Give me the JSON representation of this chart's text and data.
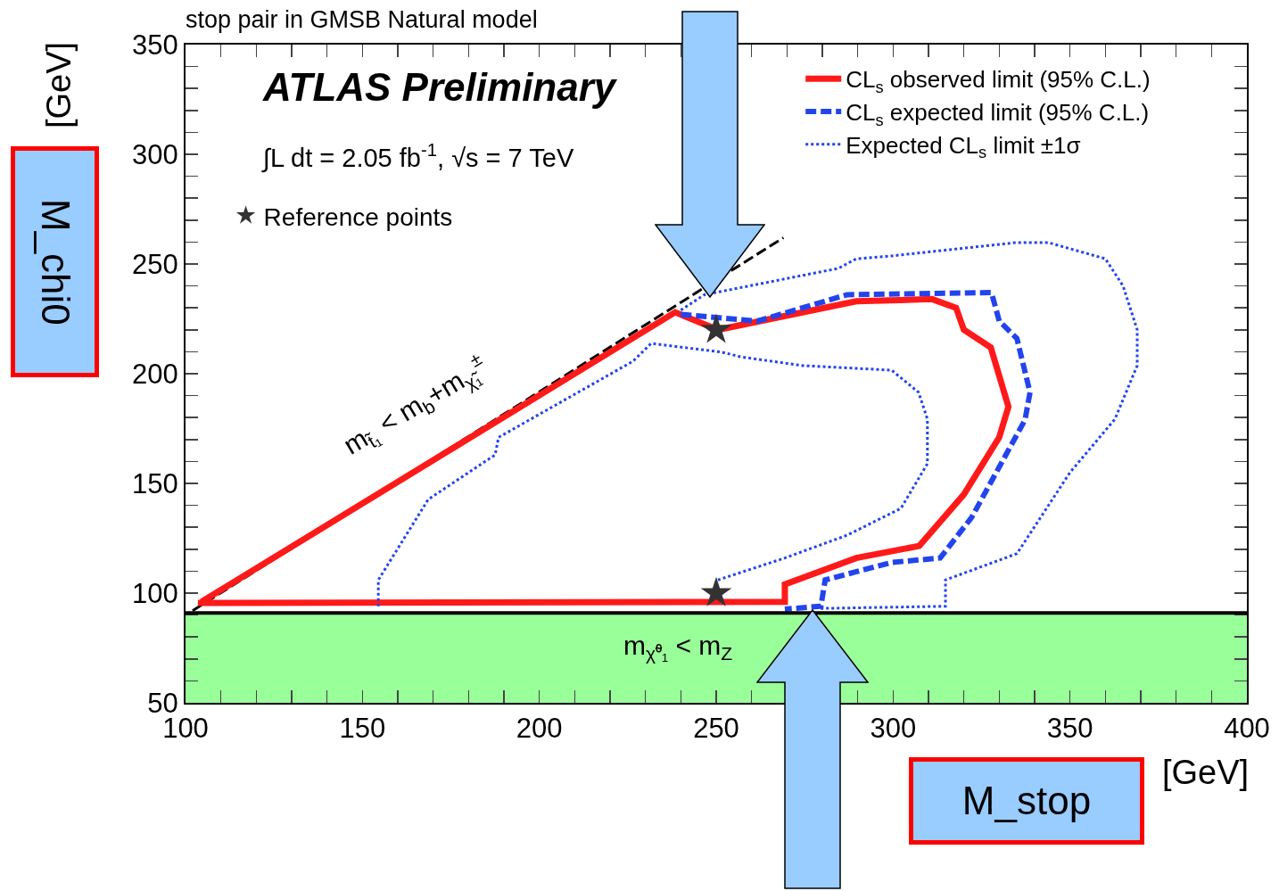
{
  "chart_data": {
    "type": "line",
    "title": "stop pair in GMSB Natural model",
    "xlabel": "[GeV]",
    "ylabel": "[GeV]",
    "xlim": [
      100,
      400
    ],
    "ylim": [
      50,
      350
    ],
    "xticks": [
      100,
      {
        "value": 110,
        "label": null
      },
      {
        "value": 120,
        "label": null
      },
      {
        "value": 130,
        "label": null
      },
      {
        "value": 140,
        "label": null
      },
      150,
      {
        "value": 160,
        "label": null
      },
      {
        "value": 170,
        "label": null
      },
      {
        "value": 180,
        "label": null
      },
      {
        "value": 190,
        "label": null
      },
      200,
      {
        "value": 210,
        "label": null
      },
      {
        "value": 220,
        "label": null
      },
      {
        "value": 230,
        "label": null
      },
      {
        "value": 240,
        "label": null
      },
      250,
      {
        "value": 260,
        "label": null
      },
      {
        "value": 270,
        "label": null
      },
      {
        "value": 280,
        "label": null
      },
      {
        "value": 290,
        "label": null
      },
      300,
      {
        "value": 310,
        "label": null
      },
      {
        "value": 320,
        "label": null
      },
      {
        "value": 330,
        "label": null
      },
      {
        "value": 340,
        "label": null
      },
      350,
      {
        "value": 360,
        "label": null
      },
      {
        "value": 370,
        "label": null
      },
      {
        "value": 380,
        "label": null
      },
      {
        "value": 390,
        "label": null
      },
      400
    ],
    "yticks": [
      50,
      {
        "value": 60,
        "label": null
      },
      {
        "value": 70,
        "label": null
      },
      {
        "value": 80,
        "label": null
      },
      {
        "value": 90,
        "label": null
      },
      100,
      {
        "value": 110,
        "label": null
      },
      {
        "value": 120,
        "label": null
      },
      {
        "value": 130,
        "label": null
      },
      {
        "value": 140,
        "label": null
      },
      150,
      {
        "value": 160,
        "label": null
      },
      {
        "value": 170,
        "label": null
      },
      {
        "value": 180,
        "label": null
      },
      {
        "value": 190,
        "label": null
      },
      200,
      {
        "value": 210,
        "label": null
      },
      {
        "value": 220,
        "label": null
      },
      {
        "value": 230,
        "label": null
      },
      {
        "value": 240,
        "label": null
      },
      250,
      {
        "value": 260,
        "label": null
      },
      {
        "value": 270,
        "label": null
      },
      {
        "value": 280,
        "label": null
      },
      {
        "value": 290,
        "label": null
      },
      300,
      {
        "value": 310,
        "label": null
      },
      {
        "value": 320,
        "label": null
      },
      {
        "value": 330,
        "label": null
      },
      {
        "value": 340,
        "label": null
      },
      350
    ],
    "grid": false,
    "legend": "top right",
    "bands": [
      {
        "axis": "y",
        "from": 50,
        "to": 91,
        "color": "#99ff99"
      }
    ],
    "ref_lines": [
      {
        "axis": "y",
        "value": 91,
        "color": "#000000"
      }
    ],
    "series": [
      {
        "line_style": "dashed",
        "color": "#000000",
        "x": [
          102,
          269
        ],
        "values": [
          92,
          262
        ]
      },
      {
        "name": "CL$_{s}$ observed limit (95% C.L.)",
        "color": "#ff1a1a",
        "line_style": "solid",
        "x": [
          104.5,
          238.4,
          250.5,
          289.6,
          311,
          317.8,
          320,
          327.6,
          332.6,
          330,
          320,
          307.4,
          289.6,
          269.4,
          269.4,
          103.5
        ],
        "values": [
          96,
          228,
          220,
          233,
          234,
          230,
          220,
          212,
          185,
          171,
          145,
          121.5,
          116,
          104,
          96,
          95.5
        ]
      },
      {
        "name": "CL$_{s}$ expected limit (95% C.L.)",
        "color": "#2244ee",
        "line_style": "dashed",
        "x": [
          240,
          261.7,
          287,
          327.8,
          330,
          335,
          338.7,
          337.3,
          322.2,
          313.3,
          299.6,
          280.8,
          279.6,
          269.4
        ],
        "values": [
          227,
          224,
          236,
          237,
          224,
          216,
          191.5,
          179,
          134.5,
          116,
          114,
          106,
          94,
          92.7
        ]
      },
      {
        "name": "Expected CL$_{s}$ limit ±1σ",
        "color": "#2244ee",
        "line_style": "dotted",
        "x": [
          240,
          246.7,
          284.5,
          289.6,
          299.6,
          335,
          343.8,
          360,
          365,
          369,
          369,
          362.7,
          350,
          335,
          314.8,
          314.8,
          279.5
        ],
        "values": [
          229,
          236,
          248,
          252.4,
          253.7,
          259.8,
          259.8,
          252.4,
          240,
          220,
          203.7,
          179.3,
          155,
          118,
          106,
          94,
          93
        ]
      },
      {
        "color": "#2244ee",
        "line_style": "dotted",
        "x": [
          154.5,
          154.5,
          168.6,
          187.5,
          188.5,
          226.5,
          231.6,
          251.7,
          256.8,
          274.4,
          299.6,
          307.2,
          309.7,
          309.7,
          302.2,
          287,
          269.4,
          250.5
        ],
        "values": [
          94,
          106,
          142.7,
          163,
          171,
          205.7,
          213.8,
          209.8,
          207.7,
          203.7,
          201.6,
          191.5,
          179.3,
          159,
          138.6,
          126.4,
          116,
          106
        ]
      },
      {
        "type": "scatter",
        "name": "Reference points",
        "marker": "star",
        "color": "#333333",
        "x": [
          250,
          250
        ],
        "values": [
          220,
          100
        ]
      }
    ],
    "annotations": [
      "ATLAS Preliminary",
      "∫L dt = 2.05 fb$^{-1}$, √s = 7 TeV",
      "m$_{t̃₁}$ < m$_{b}$+m$_{χ̃₁}$$^{±}$",
      "m$_{χ̃⁰₁}$ < m$_{Z}$",
      "M_chi0",
      "M_stop"
    ]
  }
}
